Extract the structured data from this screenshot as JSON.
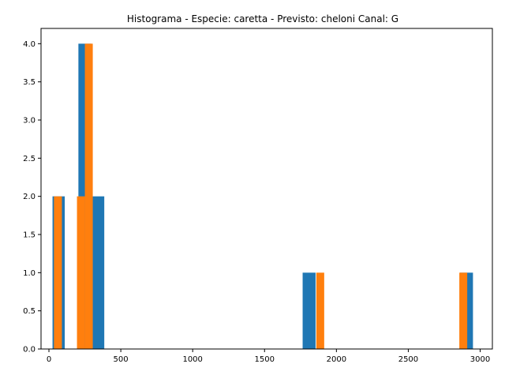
{
  "chart_data": {
    "type": "bar",
    "title": "Histograma - Especie: caretta - Previsto: cheloni Canal: G",
    "xlabel": "",
    "ylabel": "",
    "xlim": [
      -55,
      3085
    ],
    "ylim": [
      0,
      4.2
    ],
    "x_ticks": [
      0,
      500,
      1000,
      1500,
      2000,
      2500,
      3000
    ],
    "y_ticks": [
      0.0,
      0.5,
      1.0,
      1.5,
      2.0,
      2.5,
      3.0,
      3.5,
      4.0
    ],
    "grid": false,
    "series": [
      {
        "color": "#1f77b4",
        "bins": [
          {
            "x0": 25,
            "x1": 110,
            "count": 2
          },
          {
            "x0": 205,
            "x1": 295,
            "count": 4
          },
          {
            "x0": 295,
            "x1": 385,
            "count": 2
          },
          {
            "x0": 1765,
            "x1": 1855,
            "count": 1
          },
          {
            "x0": 2860,
            "x1": 2950,
            "count": 1
          }
        ]
      },
      {
        "color": "#ff7f0e",
        "bins": [
          {
            "x0": 35,
            "x1": 90,
            "count": 2
          },
          {
            "x0": 195,
            "x1": 250,
            "count": 2
          },
          {
            "x0": 250,
            "x1": 305,
            "count": 4
          },
          {
            "x0": 1860,
            "x1": 1915,
            "count": 1
          },
          {
            "x0": 2855,
            "x1": 2910,
            "count": 1
          }
        ]
      }
    ]
  }
}
